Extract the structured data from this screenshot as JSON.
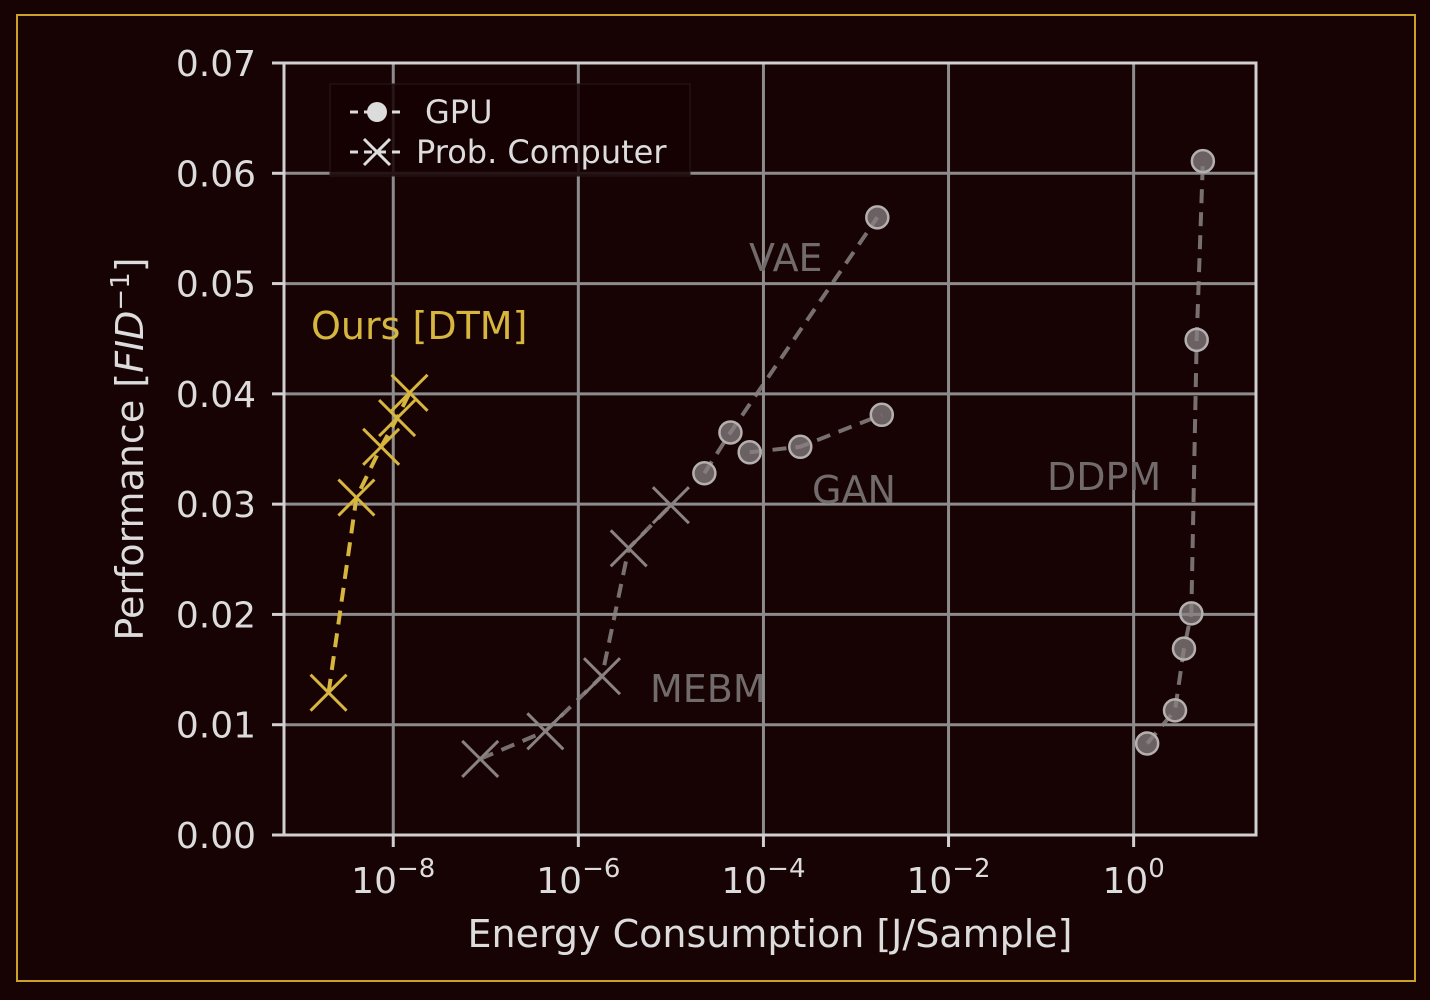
{
  "chart_data": {
    "type": "scatter",
    "title": "",
    "xlabel": "Energy Consumption [J/Sample]",
    "ylabel": "Performance [FID⁻¹]",
    "ylabel_parts": {
      "prefix": "Performance [",
      "italic": "FID",
      "sup": "−1",
      "suffix": "]"
    },
    "xscale": "log",
    "xlim": [
      6.6e-10,
      21
    ],
    "ylim": [
      0,
      0.07
    ],
    "xticks": [
      {
        "base": "10",
        "exp": "−8",
        "value": 1e-08
      },
      {
        "base": "10",
        "exp": "−6",
        "value": 1e-06
      },
      {
        "base": "10",
        "exp": "−4",
        "value": 0.0001
      },
      {
        "base": "10",
        "exp": "−2",
        "value": 0.01
      },
      {
        "base": "10",
        "exp": "0",
        "value": 1
      }
    ],
    "yticks": [
      "0.00",
      "0.01",
      "0.02",
      "0.03",
      "0.04",
      "0.05",
      "0.06",
      "0.07"
    ],
    "grid": true,
    "legend": {
      "placement": "top-left",
      "entries": [
        {
          "label": "GPU",
          "marker": "circle"
        },
        {
          "label": "Prob. Computer",
          "marker": "x"
        }
      ]
    },
    "series": [
      {
        "name": "Ours [DTM]",
        "marker": "x",
        "color": "#d6b63e",
        "x": [
          2e-09,
          4e-09,
          7.4e-09,
          1.1e-08,
          1.5e-08
        ],
        "y": [
          0.0129,
          0.0306,
          0.0352,
          0.0378,
          0.0401
        ]
      },
      {
        "name": "MEBM",
        "marker": "x",
        "color": "#8a8282",
        "x": [
          8.7e-08,
          4.4e-07,
          1.8e-06,
          3.5e-06,
          1e-05
        ],
        "y": [
          0.0069,
          0.0094,
          0.0144,
          0.026,
          0.0299
        ]
      },
      {
        "name": "VAE",
        "marker": "circle",
        "color": "#8a8282",
        "x": [
          2.3e-05,
          4.4e-05,
          0.0017
        ],
        "y": [
          0.0328,
          0.0365,
          0.056
        ]
      },
      {
        "name": "GAN",
        "marker": "circle",
        "color": "#8a8282",
        "x": [
          7.1e-05,
          0.00025,
          0.0019
        ],
        "y": [
          0.0347,
          0.0352,
          0.0381
        ]
      },
      {
        "name": "DDPM",
        "marker": "circle",
        "color": "#8a8282",
        "x": [
          1.4,
          2.8,
          3.5,
          4.2,
          4.8,
          5.6
        ],
        "y": [
          0.0083,
          0.0113,
          0.0169,
          0.0201,
          0.0449,
          0.0611
        ]
      }
    ]
  },
  "colors": {
    "background": "#170204",
    "frame": "#c9a227",
    "highlight": "#d6b63e",
    "baseline": "#8a8282",
    "grid": "#8c8c8c"
  }
}
